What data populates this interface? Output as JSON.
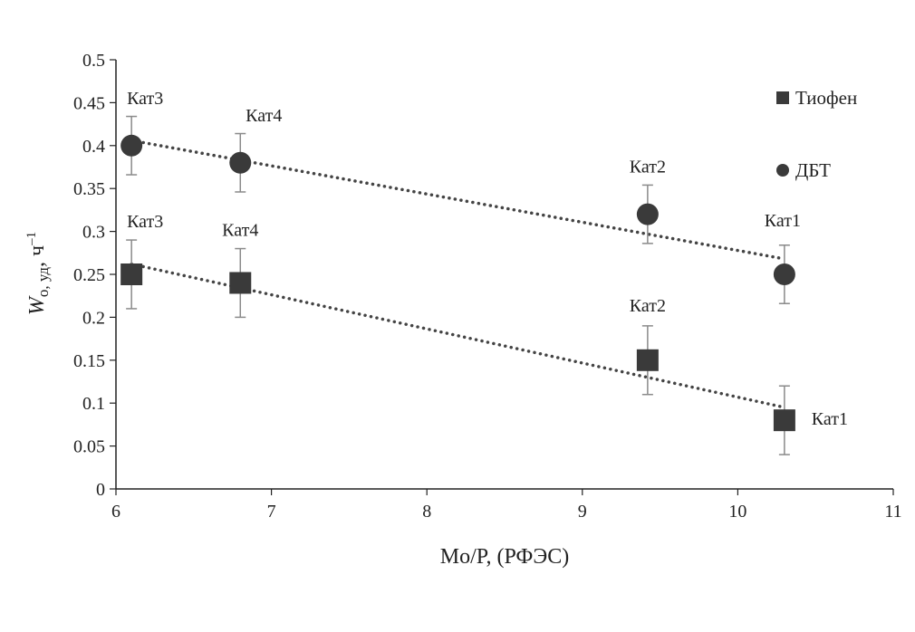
{
  "chart_data": {
    "type": "scatter",
    "xlabel": "Mo/P, (РФЭС)",
    "ylabel": {
      "main": "W",
      "sub": "o, уд",
      "unit": ", ч",
      "sup": "–1"
    },
    "xlim": [
      6,
      11
    ],
    "ylim": [
      0,
      0.5
    ],
    "x_ticks": [
      6,
      7,
      8,
      9,
      10,
      11
    ],
    "x_tick_labels": [
      "6",
      "7",
      "8",
      "9",
      "10",
      "11"
    ],
    "y_ticks": [
      0,
      0.05,
      0.1,
      0.15,
      0.2,
      0.25,
      0.3,
      0.35,
      0.4,
      0.45,
      0.5
    ],
    "y_tick_labels": [
      "0",
      "0.05",
      "0.1",
      "0.15",
      "0.2",
      "0.25",
      "0.3",
      "0.35",
      "0.4",
      "0.45",
      "0.5"
    ],
    "grid": false,
    "legend_position": "top-right",
    "series": [
      {
        "name": "Тиофен",
        "marker": "square",
        "color": "#3a3a3a",
        "points": [
          {
            "x": 6.1,
            "y": 0.25,
            "err": 0.04,
            "label": "Кат3"
          },
          {
            "x": 6.8,
            "y": 0.24,
            "err": 0.04,
            "label": "Кат4"
          },
          {
            "x": 9.42,
            "y": 0.15,
            "err": 0.04,
            "label": "Кат2"
          },
          {
            "x": 10.3,
            "y": 0.08,
            "err": 0.04,
            "label": "Кат1"
          }
        ],
        "trendline": {
          "x": [
            6.1,
            10.3
          ],
          "y": [
            0.262,
            0.095
          ]
        }
      },
      {
        "name": "ДБТ",
        "marker": "circle",
        "color": "#3a3a3a",
        "points": [
          {
            "x": 6.1,
            "y": 0.4,
            "err": 0.034,
            "label": "Кат3"
          },
          {
            "x": 6.8,
            "y": 0.38,
            "err": 0.034,
            "label": "Кат4"
          },
          {
            "x": 9.42,
            "y": 0.32,
            "err": 0.034,
            "label": "Кат2"
          },
          {
            "x": 10.3,
            "y": 0.25,
            "err": 0.034,
            "label": "Кат1"
          }
        ],
        "trendline": {
          "x": [
            6.1,
            10.3
          ],
          "y": [
            0.406,
            0.268
          ]
        }
      }
    ]
  }
}
